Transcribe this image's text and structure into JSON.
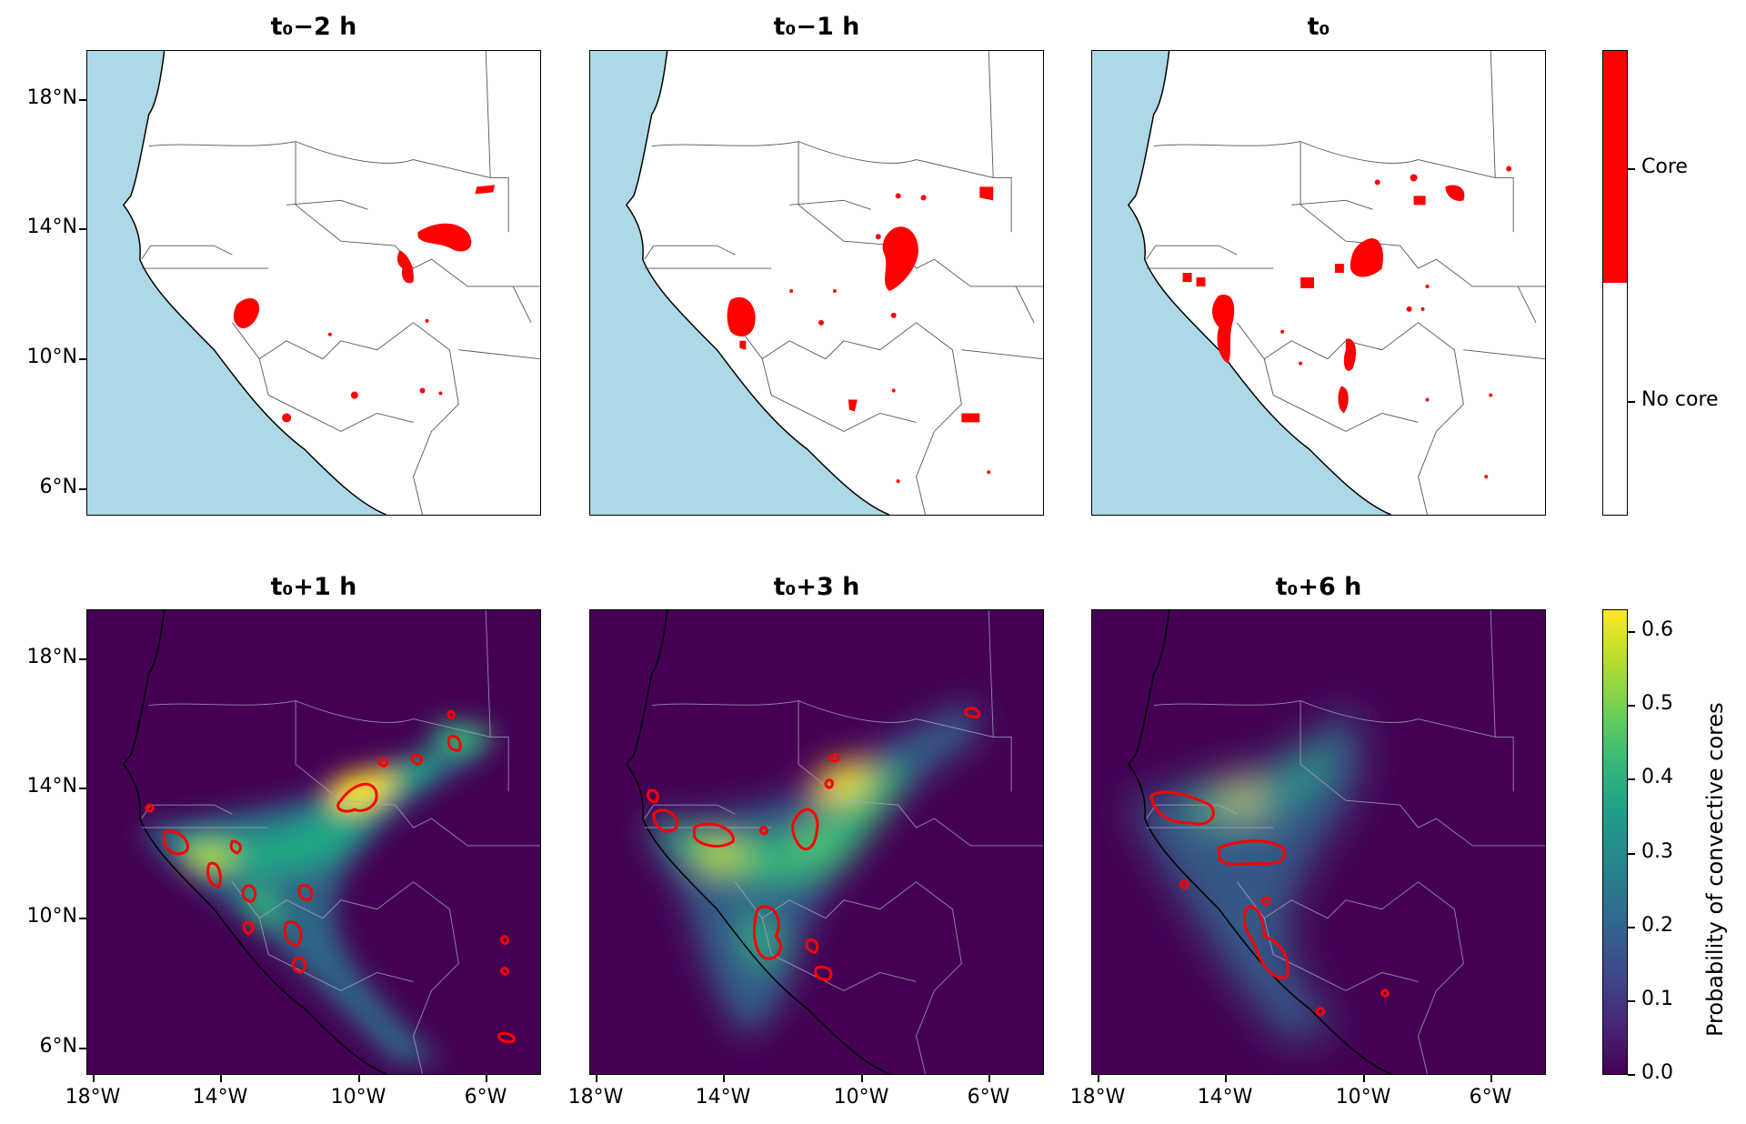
{
  "panels": [
    {
      "id": "p1",
      "title": "t₀−2 h",
      "kind": "binary"
    },
    {
      "id": "p2",
      "title": "t₀−1 h",
      "kind": "binary"
    },
    {
      "id": "p3",
      "title": "t₀",
      "kind": "binary"
    },
    {
      "id": "p4",
      "title": "t₀+1 h",
      "kind": "prob"
    },
    {
      "id": "p5",
      "title": "t₀+3 h",
      "kind": "prob"
    },
    {
      "id": "p6",
      "title": "t₀+6 h",
      "kind": "prob"
    }
  ],
  "y_ticks": [
    "18°N",
    "14°N",
    "10°N",
    "6°N"
  ],
  "x_ticks": [
    "18°W",
    "14°W",
    "10°W",
    "6°W"
  ],
  "colorbar_binary": {
    "labels": [
      "Core",
      "No core"
    ],
    "colors": {
      "core": "#ff0000",
      "no_core": "#ffffff"
    }
  },
  "colorbar_prob": {
    "label": "Probability of convective cores",
    "ticks": [
      "0.6",
      "0.5",
      "0.4",
      "0.3",
      "0.2",
      "0.1",
      "0.0"
    ],
    "range": [
      0.0,
      0.63
    ],
    "colormap": "viridis"
  },
  "colors": {
    "ocean": "#add8e6",
    "land": "#ffffff",
    "core": "#ff0000",
    "background": "#440154"
  }
}
